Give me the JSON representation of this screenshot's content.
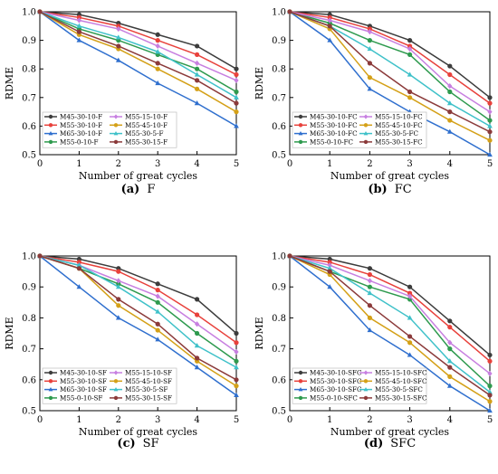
{
  "chart_data": [
    {
      "type": "line",
      "caption": {
        "letter": "(a)",
        "name": "F"
      },
      "xlabel": "Number of great cycles",
      "ylabel": "RDME",
      "xlim": [
        0,
        5
      ],
      "ylim": [
        0.5,
        1.0
      ],
      "x": [
        0,
        1,
        2,
        3,
        4,
        5
      ],
      "xticks": [
        "0",
        "1",
        "2",
        "3",
        "4",
        "5"
      ],
      "yticks": [
        "0.5",
        "0.6",
        "0.7",
        "0.8",
        "0.9",
        "1.0"
      ],
      "legend_placement": "bottom-left, 2 columns",
      "series": [
        {
          "name": "M45-30-10-F",
          "color": "#3c3c3c",
          "values": [
            1.0,
            0.99,
            0.96,
            0.92,
            0.88,
            0.8
          ]
        },
        {
          "name": "M55-30-10-F",
          "color": "#e8413b",
          "values": [
            1.0,
            0.98,
            0.95,
            0.9,
            0.85,
            0.78
          ]
        },
        {
          "name": "M65-30-10-F",
          "color": "#2f6fce",
          "values": [
            1.0,
            0.9,
            0.83,
            0.75,
            0.68,
            0.6
          ]
        },
        {
          "name": "M55-0-10-F",
          "color": "#2e9a4e",
          "values": [
            1.0,
            0.94,
            0.9,
            0.85,
            0.8,
            0.72
          ]
        },
        {
          "name": "M55-15-10-F",
          "color": "#c77fe0",
          "values": [
            1.0,
            0.97,
            0.94,
            0.88,
            0.82,
            0.76
          ]
        },
        {
          "name": "M55-45-10-F",
          "color": "#d4a017",
          "values": [
            1.0,
            0.92,
            0.87,
            0.8,
            0.73,
            0.65
          ]
        },
        {
          "name": "M55-30-5-F",
          "color": "#3fc1c9",
          "values": [
            1.0,
            0.95,
            0.91,
            0.86,
            0.78,
            0.7
          ]
        },
        {
          "name": "M55-30-15-F",
          "color": "#8b3a3a",
          "values": [
            1.0,
            0.93,
            0.88,
            0.82,
            0.76,
            0.68
          ]
        }
      ]
    },
    {
      "type": "line",
      "caption": {
        "letter": "(b)",
        "name": "FC"
      },
      "xlabel": "Number of great cycles",
      "ylabel": "RDME",
      "xlim": [
        0,
        5
      ],
      "ylim": [
        0.5,
        1.0
      ],
      "x": [
        0,
        1,
        2,
        3,
        4,
        5
      ],
      "xticks": [
        "0",
        "1",
        "2",
        "3",
        "4",
        "5"
      ],
      "yticks": [
        "0.5",
        "0.6",
        "0.7",
        "0.8",
        "0.9",
        "1.0"
      ],
      "legend_placement": "bottom-left, 2 columns",
      "series": [
        {
          "name": "M45-30-10-FC",
          "color": "#3c3c3c",
          "values": [
            1.0,
            0.99,
            0.95,
            0.9,
            0.81,
            0.7
          ]
        },
        {
          "name": "M55-30-10-FC",
          "color": "#e8413b",
          "values": [
            1.0,
            0.98,
            0.94,
            0.88,
            0.78,
            0.68
          ]
        },
        {
          "name": "M65-30-10-FC",
          "color": "#2f6fce",
          "values": [
            1.0,
            0.9,
            0.73,
            0.65,
            0.58,
            0.5
          ]
        },
        {
          "name": "M55-0-10-FC",
          "color": "#2e9a4e",
          "values": [
            1.0,
            0.96,
            0.9,
            0.85,
            0.72,
            0.62
          ]
        },
        {
          "name": "M55-15-10-FC",
          "color": "#c77fe0",
          "values": [
            1.0,
            0.97,
            0.93,
            0.87,
            0.74,
            0.65
          ]
        },
        {
          "name": "M55-45-10-FC",
          "color": "#d4a017",
          "values": [
            1.0,
            0.94,
            0.77,
            0.7,
            0.62,
            0.55
          ]
        },
        {
          "name": "M55-30-5-FC",
          "color": "#3fc1c9",
          "values": [
            1.0,
            0.95,
            0.87,
            0.78,
            0.68,
            0.6
          ]
        },
        {
          "name": "M55-30-15-FC",
          "color": "#8b3a3a",
          "values": [
            1.0,
            0.95,
            0.82,
            0.72,
            0.65,
            0.58
          ]
        }
      ]
    },
    {
      "type": "line",
      "caption": {
        "letter": "(c)",
        "name": "SF"
      },
      "xlabel": "Number of great cycles",
      "ylabel": "RDME",
      "xlim": [
        0,
        5
      ],
      "ylim": [
        0.5,
        1.0
      ],
      "x": [
        0,
        1,
        2,
        3,
        4,
        5
      ],
      "xticks": [
        "0",
        "1",
        "2",
        "3",
        "4",
        "5"
      ],
      "yticks": [
        "0.5",
        "0.6",
        "0.7",
        "0.8",
        "0.9",
        "1.0"
      ],
      "legend_placement": "bottom-left, 2 columns",
      "series": [
        {
          "name": "M45-30-10-SF",
          "color": "#3c3c3c",
          "values": [
            1.0,
            0.99,
            0.96,
            0.91,
            0.86,
            0.75
          ]
        },
        {
          "name": "M55-30-10-SF",
          "color": "#e8413b",
          "values": [
            1.0,
            0.98,
            0.95,
            0.89,
            0.81,
            0.72
          ]
        },
        {
          "name": "M65-30-10-SF",
          "color": "#2f6fce",
          "values": [
            1.0,
            0.9,
            0.8,
            0.73,
            0.64,
            0.55
          ]
        },
        {
          "name": "M55-0-10-SF",
          "color": "#2e9a4e",
          "values": [
            1.0,
            0.96,
            0.91,
            0.85,
            0.75,
            0.66
          ]
        },
        {
          "name": "M55-15-10-SF",
          "color": "#c77fe0",
          "values": [
            1.0,
            0.97,
            0.92,
            0.87,
            0.78,
            0.69
          ]
        },
        {
          "name": "M55-45-10-SF",
          "color": "#d4a017",
          "values": [
            1.0,
            0.96,
            0.84,
            0.76,
            0.66,
            0.58
          ]
        },
        {
          "name": "M55-30-5-SF",
          "color": "#3fc1c9",
          "values": [
            1.0,
            0.97,
            0.9,
            0.82,
            0.71,
            0.64
          ]
        },
        {
          "name": "M55-30-15-SF",
          "color": "#8b3a3a",
          "values": [
            1.0,
            0.96,
            0.86,
            0.78,
            0.67,
            0.6
          ]
        }
      ]
    },
    {
      "type": "line",
      "caption": {
        "letter": "(d)",
        "name": "SFC"
      },
      "xlabel": "Number of great cycles",
      "ylabel": "RDME",
      "xlim": [
        0,
        5
      ],
      "ylim": [
        0.5,
        1.0
      ],
      "x": [
        0,
        1,
        2,
        3,
        4,
        5
      ],
      "xticks": [
        "0",
        "1",
        "2",
        "3",
        "4",
        "5"
      ],
      "yticks": [
        "0.5",
        "0.6",
        "0.7",
        "0.8",
        "0.9",
        "1.0"
      ],
      "legend_placement": "bottom-left, 2 columns",
      "series": [
        {
          "name": "M45-30-10-SFC",
          "color": "#3c3c3c",
          "values": [
            1.0,
            0.99,
            0.96,
            0.9,
            0.79,
            0.68
          ]
        },
        {
          "name": "M55-30-10-SFC",
          "color": "#e8413b",
          "values": [
            1.0,
            0.98,
            0.94,
            0.88,
            0.77,
            0.66
          ]
        },
        {
          "name": "M65-30-10-SFC",
          "color": "#2f6fce",
          "values": [
            1.0,
            0.9,
            0.76,
            0.68,
            0.58,
            0.5
          ]
        },
        {
          "name": "M55-0-10-SFC",
          "color": "#2e9a4e",
          "values": [
            1.0,
            0.95,
            0.9,
            0.86,
            0.7,
            0.58
          ]
        },
        {
          "name": "M55-15-10-SFC",
          "color": "#c77fe0",
          "values": [
            1.0,
            0.97,
            0.92,
            0.87,
            0.72,
            0.62
          ]
        },
        {
          "name": "M55-45-10-SFC",
          "color": "#d4a017",
          "values": [
            1.0,
            0.94,
            0.8,
            0.72,
            0.61,
            0.53
          ]
        },
        {
          "name": "M55-30-5-SFC",
          "color": "#3fc1c9",
          "values": [
            1.0,
            0.96,
            0.88,
            0.8,
            0.66,
            0.56
          ]
        },
        {
          "name": "M55-30-15-SFC",
          "color": "#8b3a3a",
          "values": [
            1.0,
            0.95,
            0.84,
            0.74,
            0.64,
            0.55
          ]
        }
      ]
    }
  ]
}
